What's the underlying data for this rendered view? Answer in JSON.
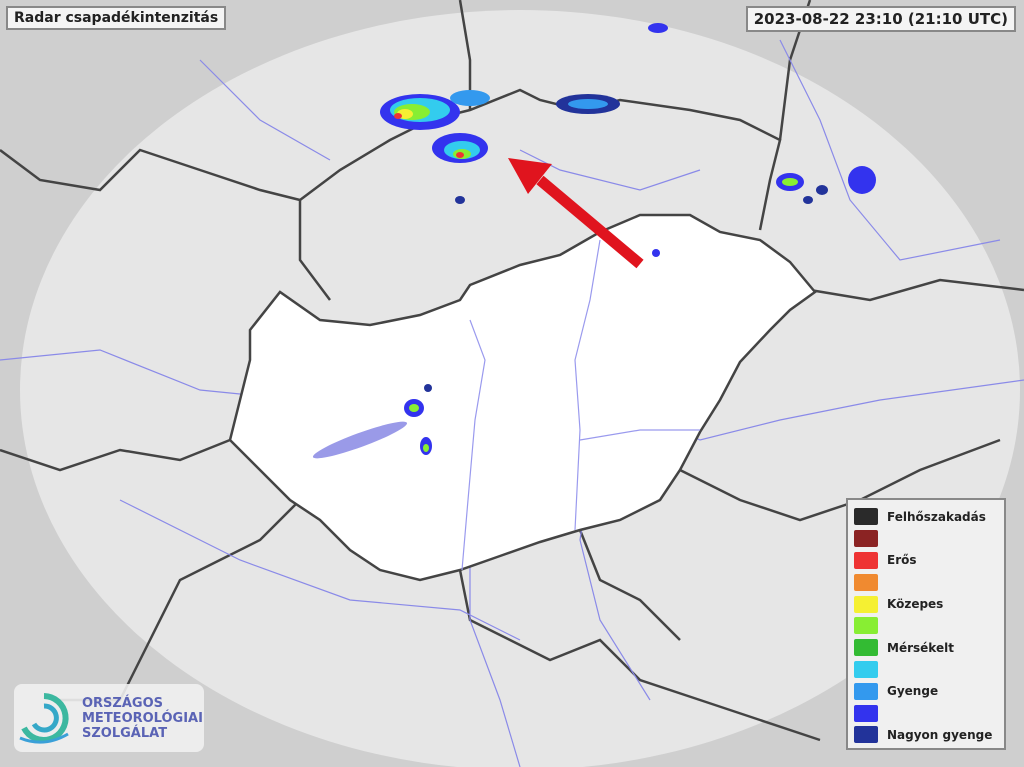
{
  "header": {
    "title": "Radar csapadékintenzitás",
    "timestamp": "2023-08-22 23:10 (21:10 UTC)"
  },
  "legend": {
    "items": [
      {
        "label": "Felhőszakadás",
        "color": "#2a2a2a"
      },
      {
        "label": "",
        "color": "#8b2323"
      },
      {
        "label": "Erős",
        "color": "#ee3333"
      },
      {
        "label": "",
        "color": "#f08a30"
      },
      {
        "label": "Közepes",
        "color": "#f5f032"
      },
      {
        "label": "",
        "color": "#88ee33"
      },
      {
        "label": "Mérsékelt",
        "color": "#33bb33"
      },
      {
        "label": "",
        "color": "#33ccee"
      },
      {
        "label": "Gyenge",
        "color": "#3399ee"
      },
      {
        "label": "",
        "color": "#3333ee"
      },
      {
        "label": "Nagyon gyenge",
        "color": "#22339a"
      }
    ]
  },
  "logo": {
    "line1": "ORSZÁGOS",
    "line2": "METEOROLÓGIAI",
    "line3": "SZOLGÁLAT"
  },
  "colors": {
    "arrow": "#e0141e",
    "country_fill": "#ffffff",
    "radar_range": "#e6e6e6",
    "rivers": "#8a8ae8"
  },
  "icons": {
    "annotation": "red-arrow-icon",
    "logo": "met-service-swirl-logo"
  }
}
